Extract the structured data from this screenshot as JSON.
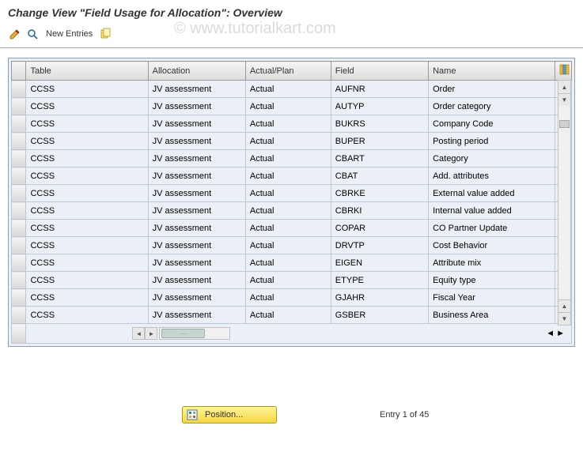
{
  "title": "Change View \"Field Usage for Allocation\": Overview",
  "watermark": "© www.tutorialkart.com",
  "toolbar": {
    "new_entries_label": "New Entries"
  },
  "columns": {
    "table": "Table",
    "allocation": "Allocation",
    "actual_plan": "Actual/Plan",
    "field": "Field",
    "name": "Name"
  },
  "column_widths": {
    "sel": 18,
    "table": 150,
    "allocation": 120,
    "actual_plan": 105,
    "field": 120,
    "name": 155,
    "cfg": 20
  },
  "rows": [
    {
      "table": "CCSS",
      "allocation": "JV assessment",
      "actual_plan": "Actual",
      "field": "AUFNR",
      "name": "Order"
    },
    {
      "table": "CCSS",
      "allocation": "JV assessment",
      "actual_plan": "Actual",
      "field": "AUTYP",
      "name": "Order category"
    },
    {
      "table": "CCSS",
      "allocation": "JV assessment",
      "actual_plan": "Actual",
      "field": "BUKRS",
      "name": "Company Code"
    },
    {
      "table": "CCSS",
      "allocation": "JV assessment",
      "actual_plan": "Actual",
      "field": "BUPER",
      "name": "Posting period"
    },
    {
      "table": "CCSS",
      "allocation": "JV assessment",
      "actual_plan": "Actual",
      "field": "CBART",
      "name": "Category"
    },
    {
      "table": "CCSS",
      "allocation": "JV assessment",
      "actual_plan": "Actual",
      "field": "CBAT",
      "name": "Add. attributes"
    },
    {
      "table": "CCSS",
      "allocation": "JV assessment",
      "actual_plan": "Actual",
      "field": "CBRKE",
      "name": "External value added"
    },
    {
      "table": "CCSS",
      "allocation": "JV assessment",
      "actual_plan": "Actual",
      "field": "CBRKI",
      "name": "Internal value added"
    },
    {
      "table": "CCSS",
      "allocation": "JV assessment",
      "actual_plan": "Actual",
      "field": "COPAR",
      "name": "CO Partner Update"
    },
    {
      "table": "CCSS",
      "allocation": "JV assessment",
      "actual_plan": "Actual",
      "field": "DRVTP",
      "name": "Cost Behavior"
    },
    {
      "table": "CCSS",
      "allocation": "JV assessment",
      "actual_plan": "Actual",
      "field": "EIGEN",
      "name": "Attribute mix"
    },
    {
      "table": "CCSS",
      "allocation": "JV assessment",
      "actual_plan": "Actual",
      "field": "ETYPE",
      "name": "Equity type"
    },
    {
      "table": "CCSS",
      "allocation": "JV assessment",
      "actual_plan": "Actual",
      "field": "GJAHR",
      "name": "Fiscal Year"
    },
    {
      "table": "CCSS",
      "allocation": "JV assessment",
      "actual_plan": "Actual",
      "field": "GSBER",
      "name": "Business Area"
    }
  ],
  "footer": {
    "position_label": "Position...",
    "entry_status": "Entry 1 of 45"
  },
  "colors": {
    "cell_bg": "#eaf0f6",
    "header_grad_top": "#f5f5f5",
    "header_grad_bot": "#dcdcdc",
    "border": "#bcc8d4",
    "outer_border": "#8ba0b5",
    "footer_btn_top": "#fff59a",
    "footer_btn_bot": "#f5d742"
  }
}
